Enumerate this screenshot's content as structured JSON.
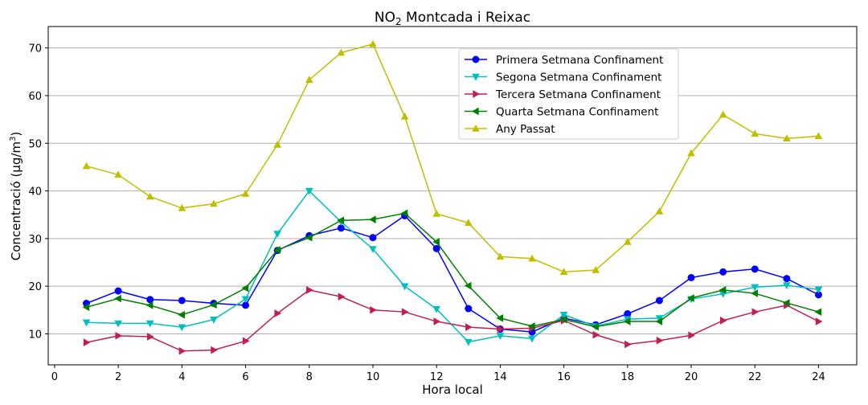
{
  "chart_data": {
    "type": "line",
    "title": {
      "main": "NO",
      "sub": "2",
      "rest": " Montcada i Reixac"
    },
    "xlabel": "Hora local",
    "ylabel": {
      "prefix": "Concentració (µg/m",
      "sup": "3",
      "suffix": ")"
    },
    "xlim": [
      -0.2,
      25.2
    ],
    "ylim": [
      3.5,
      74.5
    ],
    "xticks": [
      0,
      2,
      4,
      6,
      8,
      10,
      12,
      14,
      16,
      18,
      20,
      22,
      24
    ],
    "yticks": [
      10,
      20,
      30,
      40,
      50,
      60,
      70
    ],
    "grid": "horizontal",
    "legend_position": "upper-right-center",
    "x": [
      1,
      2,
      3,
      4,
      5,
      6,
      7,
      8,
      9,
      10,
      11,
      12,
      13,
      14,
      15,
      16,
      17,
      18,
      19,
      20,
      21,
      22,
      23,
      24
    ],
    "series": [
      {
        "name": "Primera Setmana Confinament",
        "color": "#0000ff",
        "marker": "circle",
        "values": [
          16.4,
          19.0,
          17.2,
          17.0,
          16.4,
          16.0,
          27.5,
          30.6,
          32.2,
          30.2,
          34.8,
          27.9,
          15.3,
          11.0,
          10.4,
          13.3,
          11.9,
          14.2,
          17.0,
          21.8,
          23.0,
          23.6,
          21.6,
          18.2
        ]
      },
      {
        "name": "Segona Setmana Confinament",
        "color": "#00bfbf",
        "marker": "triangle-down",
        "values": [
          12.4,
          12.2,
          12.2,
          11.4,
          13.0,
          17.3,
          31.0,
          40.0,
          33.5,
          27.8,
          20.0,
          15.2,
          8.3,
          9.6,
          9.0,
          14.0,
          11.6,
          13.1,
          13.3,
          17.3,
          18.4,
          19.8,
          20.2,
          19.3
        ]
      },
      {
        "name": "Tercera Setmana Confinament",
        "color": "#bf2050",
        "marker": "triangle-right",
        "values": [
          8.2,
          9.6,
          9.4,
          6.4,
          6.6,
          8.5,
          14.3,
          19.2,
          17.8,
          15.0,
          14.6,
          12.6,
          11.4,
          11.0,
          11.2,
          12.8,
          9.8,
          7.8,
          8.6,
          9.7,
          12.8,
          14.6,
          16.0,
          12.6
        ]
      },
      {
        "name": "Quarta Setmana Confinament",
        "color": "#008000",
        "marker": "triangle-left",
        "values": [
          15.6,
          17.4,
          16.0,
          14.0,
          16.1,
          19.6,
          27.6,
          30.2,
          33.8,
          34.0,
          35.3,
          29.3,
          20.1,
          13.3,
          11.6,
          13.0,
          11.5,
          12.6,
          12.6,
          17.5,
          19.2,
          18.5,
          16.5,
          14.6
        ]
      },
      {
        "name": "Any Passat",
        "color": "#bfbf00",
        "marker": "triangle-up",
        "values": [
          45.2,
          43.4,
          38.8,
          36.4,
          37.3,
          39.4,
          49.7,
          63.3,
          69.0,
          70.8,
          55.6,
          35.2,
          33.3,
          26.2,
          25.8,
          23.0,
          23.4,
          29.3,
          35.7,
          47.9,
          56.0,
          52.0,
          51.0,
          51.5
        ]
      }
    ]
  }
}
